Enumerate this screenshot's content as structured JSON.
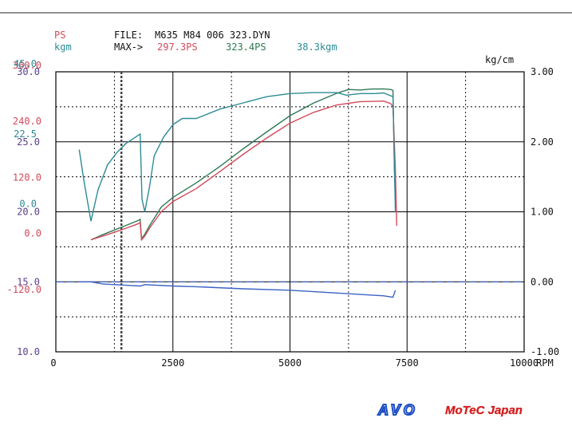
{
  "header": {
    "ps_unit": "PS",
    "kgm_unit": "kgm",
    "file_label": "FILE:",
    "file_name": "M635 M84 006 323.DYN",
    "max_label": "MAX->",
    "max_ps_red": "297.3PS",
    "max_ps_green": "323.4PS",
    "max_kgm": "38.3kgm",
    "right_unit": "kg/cm"
  },
  "colors": {
    "red": "#d24a5a",
    "green": "#2f7a55",
    "teal": "#2d8b95",
    "blue": "#3b62c4",
    "purple": "#5b3f8a",
    "grid": "#000000",
    "logo_blue": "#1d4fc4",
    "logo_red": "#d41e1e"
  },
  "left_axis": {
    "ps_ticks": [
      {
        "label": "360.0",
        "value": 360
      },
      {
        "label": "240.0",
        "value": 240
      },
      {
        "label": "120.0",
        "value": 120
      },
      {
        "label": "0.0",
        "value": 0
      },
      {
        "label": "-120.0",
        "value": -120
      }
    ],
    "kgm_ticks": [
      {
        "label": "45.0",
        "value": 45
      },
      {
        "label": "22.5",
        "value": 22.5
      },
      {
        "label": "0.0",
        "value": 0
      }
    ],
    "purple_ticks": [
      {
        "label": "30.0",
        "value": 30
      },
      {
        "label": "25.0",
        "value": 25
      },
      {
        "label": "20.0",
        "value": 20
      },
      {
        "label": "15.0",
        "value": 15
      },
      {
        "label": "10.0",
        "value": 10
      }
    ]
  },
  "chart_data": {
    "type": "line",
    "file": "M635 M84 006 323.DYN",
    "xlabel": "RPM",
    "xlim": [
      0,
      10000
    ],
    "x_ticks": [
      {
        "label": "0",
        "value": 0
      },
      {
        "label": "2500",
        "value": 2500
      },
      {
        "label": "5000",
        "value": 5000
      },
      {
        "label": "7500",
        "value": 7500
      },
      {
        "label": "10000",
        "value": 10000
      }
    ],
    "right_axis": {
      "label": "kg/cm",
      "lim": [
        -1.0,
        3.0
      ],
      "ticks": [
        {
          "label": "3.00",
          "value": 3
        },
        {
          "label": "2.00",
          "value": 2
        },
        {
          "label": "1.00",
          "value": 1
        },
        {
          "label": "0.00",
          "value": 0
        },
        {
          "label": "-1.00",
          "value": -1
        }
      ]
    },
    "power_axis": {
      "unit": "PS",
      "lim": [
        -240,
        360
      ]
    },
    "torque_axis": {
      "unit": "kgm",
      "lim": [
        -45,
        45
      ]
    },
    "grid": true,
    "vertical_marker_rpm": 1400,
    "series": [
      {
        "name": "323.4PS",
        "color": "#2f7a55",
        "axis": "power",
        "points": [
          [
            750,
            0
          ],
          [
            1000,
            11
          ],
          [
            1250,
            21
          ],
          [
            1500,
            31
          ],
          [
            1750,
            41
          ],
          [
            1800,
            44
          ],
          [
            1830,
            2
          ],
          [
            1900,
            12
          ],
          [
            2000,
            30
          ],
          [
            2250,
            70
          ],
          [
            2500,
            91
          ],
          [
            3000,
            122
          ],
          [
            3500,
            157
          ],
          [
            4000,
            195
          ],
          [
            4500,
            231
          ],
          [
            5000,
            266
          ],
          [
            5500,
            293
          ],
          [
            6000,
            314
          ],
          [
            6250,
            322
          ],
          [
            6500,
            321
          ],
          [
            6750,
            323
          ],
          [
            7000,
            323.4
          ],
          [
            7150,
            322
          ],
          [
            7200,
            320
          ],
          [
            7230,
            150
          ],
          [
            7250,
            90
          ],
          [
            7260,
            70
          ]
        ]
      },
      {
        "name": "297.3PS",
        "color": "#d24a5a",
        "axis": "power",
        "points": [
          [
            750,
            0
          ],
          [
            1000,
            8
          ],
          [
            1250,
            16
          ],
          [
            1500,
            25
          ],
          [
            1750,
            34
          ],
          [
            1800,
            37
          ],
          [
            1830,
            0
          ],
          [
            1900,
            8
          ],
          [
            2000,
            25
          ],
          [
            2250,
            60
          ],
          [
            2500,
            82
          ],
          [
            3000,
            110
          ],
          [
            3500,
            146
          ],
          [
            4000,
            183
          ],
          [
            4500,
            218
          ],
          [
            5000,
            250
          ],
          [
            5500,
            273
          ],
          [
            6000,
            289
          ],
          [
            6500,
            296
          ],
          [
            7000,
            297.3
          ],
          [
            7150,
            292
          ],
          [
            7200,
            285
          ],
          [
            7250,
            150
          ],
          [
            7280,
            30
          ]
        ]
      },
      {
        "name": "38.3kgm",
        "color": "#2d8b95",
        "axis": "torque",
        "points": [
          [
            500,
            20
          ],
          [
            600,
            10
          ],
          [
            750,
            -3
          ],
          [
            900,
            7
          ],
          [
            1100,
            15
          ],
          [
            1300,
            19
          ],
          [
            1500,
            22
          ],
          [
            1700,
            24
          ],
          [
            1800,
            25
          ],
          [
            1840,
            4
          ],
          [
            1900,
            0
          ],
          [
            2000,
            8
          ],
          [
            2100,
            18
          ],
          [
            2300,
            24
          ],
          [
            2500,
            28
          ],
          [
            2700,
            30
          ],
          [
            3000,
            30
          ],
          [
            3500,
            33
          ],
          [
            4000,
            35
          ],
          [
            4500,
            37
          ],
          [
            5000,
            38
          ],
          [
            5500,
            38.3
          ],
          [
            6000,
            38.3
          ],
          [
            6200,
            37.5
          ],
          [
            6500,
            38
          ],
          [
            6800,
            38
          ],
          [
            7000,
            38.2
          ],
          [
            7200,
            37
          ],
          [
            7230,
            15
          ],
          [
            7250,
            0
          ]
        ]
      },
      {
        "name": "",
        "color": "#3b62c4",
        "axis": "boost",
        "points": [
          [
            500,
            0.0
          ],
          [
            750,
            0.0
          ],
          [
            1000,
            -0.03
          ],
          [
            1500,
            -0.05
          ],
          [
            1800,
            -0.06
          ],
          [
            1900,
            -0.04
          ],
          [
            2500,
            -0.06
          ],
          [
            3000,
            -0.07
          ],
          [
            4000,
            -0.1
          ],
          [
            5000,
            -0.12
          ],
          [
            6000,
            -0.16
          ],
          [
            7000,
            -0.2
          ],
          [
            7200,
            -0.22
          ],
          [
            7250,
            -0.12
          ]
        ]
      },
      {
        "name": "",
        "color": "#3b62c4",
        "axis": "boost",
        "dashed": true,
        "points": [
          [
            0,
            0
          ],
          [
            10000,
            0
          ]
        ]
      }
    ]
  },
  "logo": {
    "brand": "AVO",
    "partner": "MoTeC Japan"
  }
}
